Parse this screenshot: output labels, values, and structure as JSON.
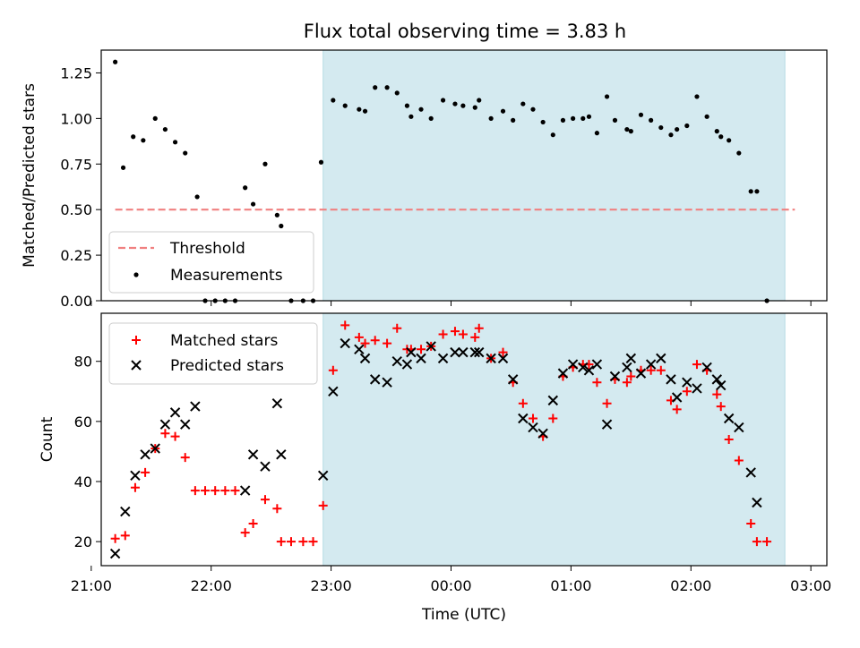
{
  "figure": {
    "title": "Flux total observing time = 3.83 h"
  },
  "highlight": {
    "x_start": "22:56",
    "x_end": "02:47",
    "color": "#d4eaf0"
  },
  "chart_data": [
    {
      "type": "scatter",
      "xlabel": "",
      "ylabel": "Matched/Predicted stars",
      "xlim": [
        "21:05",
        "03:08"
      ],
      "ylim": [
        0,
        1.375
      ],
      "yticks": [
        "0.00",
        "0.25",
        "0.50",
        "0.75",
        "1.00",
        "1.25"
      ],
      "legend": {
        "location": "lower left",
        "entries": [
          "Threshold",
          "Measurements"
        ]
      },
      "threshold": {
        "name": "Threshold",
        "value": 0.5,
        "x_range": [
          "21:12",
          "02:52"
        ],
        "color": "#f08080",
        "style": "dashed"
      },
      "series": [
        {
          "name": "Measurements",
          "color": "#000000",
          "points": [
            [
              "21:12",
              1.31
            ],
            [
              "21:16",
              0.73
            ],
            [
              "21:21",
              0.9
            ],
            [
              "21:26",
              0.88
            ],
            [
              "21:32",
              1.0
            ],
            [
              "21:37",
              0.94
            ],
            [
              "21:42",
              0.87
            ],
            [
              "21:47",
              0.81
            ],
            [
              "21:53",
              0.57
            ],
            [
              "21:57",
              0.0
            ],
            [
              "22:02",
              0.0
            ],
            [
              "22:07",
              0.0
            ],
            [
              "22:12",
              0.0
            ],
            [
              "22:17",
              0.62
            ],
            [
              "22:21",
              0.53
            ],
            [
              "22:27",
              0.75
            ],
            [
              "22:33",
              0.47
            ],
            [
              "22:35",
              0.41
            ],
            [
              "22:40",
              0.0
            ],
            [
              "22:46",
              0.0
            ],
            [
              "22:51",
              0.0
            ],
            [
              "22:55",
              0.76
            ],
            [
              "23:01",
              1.1
            ],
            [
              "23:07",
              1.07
            ],
            [
              "23:14",
              1.05
            ],
            [
              "23:17",
              1.04
            ],
            [
              "23:22",
              1.17
            ],
            [
              "23:28",
              1.17
            ],
            [
              "23:33",
              1.14
            ],
            [
              "23:38",
              1.07
            ],
            [
              "23:40",
              1.01
            ],
            [
              "23:45",
              1.05
            ],
            [
              "23:50",
              1.0
            ],
            [
              "23:56",
              1.1
            ],
            [
              "00:02",
              1.08
            ],
            [
              "00:06",
              1.07
            ],
            [
              "00:12",
              1.06
            ],
            [
              "00:14",
              1.1
            ],
            [
              "00:20",
              1.0
            ],
            [
              "00:26",
              1.04
            ],
            [
              "00:31",
              0.99
            ],
            [
              "00:36",
              1.08
            ],
            [
              "00:41",
              1.05
            ],
            [
              "00:46",
              0.98
            ],
            [
              "00:51",
              0.91
            ],
            [
              "00:56",
              0.99
            ],
            [
              "01:01",
              1.0
            ],
            [
              "01:06",
              1.0
            ],
            [
              "01:09",
              1.01
            ],
            [
              "01:13",
              0.92
            ],
            [
              "01:18",
              1.12
            ],
            [
              "01:22",
              0.99
            ],
            [
              "01:28",
              0.94
            ],
            [
              "01:30",
              0.93
            ],
            [
              "01:35",
              1.02
            ],
            [
              "01:40",
              0.99
            ],
            [
              "01:45",
              0.95
            ],
            [
              "01:50",
              0.91
            ],
            [
              "01:53",
              0.94
            ],
            [
              "01:58",
              0.96
            ],
            [
              "02:03",
              1.12
            ],
            [
              "02:08",
              1.01
            ],
            [
              "02:13",
              0.93
            ],
            [
              "02:15",
              0.9
            ],
            [
              "02:19",
              0.88
            ],
            [
              "02:24",
              0.81
            ],
            [
              "02:30",
              0.6
            ],
            [
              "02:33",
              0.6
            ],
            [
              "02:38",
              0.0
            ]
          ]
        }
      ]
    },
    {
      "type": "scatter",
      "xlabel": "Time (UTC)",
      "ylabel": "Count",
      "xlim": [
        "21:05",
        "03:08"
      ],
      "ylim": [
        12,
        96
      ],
      "yticks": [
        "20",
        "40",
        "60",
        "80"
      ],
      "xticks": [
        "21:00",
        "22:00",
        "23:00",
        "00:00",
        "01:00",
        "02:00",
        "03:00"
      ],
      "legend": {
        "location": "upper left",
        "entries": [
          "Matched stars",
          "Predicted stars"
        ]
      },
      "series": [
        {
          "name": "Matched stars",
          "marker": "plus",
          "color": "#ff0000",
          "points": [
            [
              "21:12",
              21
            ],
            [
              "21:17",
              22
            ],
            [
              "21:22",
              38
            ],
            [
              "21:27",
              43
            ],
            [
              "21:32",
              51
            ],
            [
              "21:37",
              56
            ],
            [
              "21:42",
              55
            ],
            [
              "21:47",
              48
            ],
            [
              "21:52",
              37
            ],
            [
              "21:57",
              37
            ],
            [
              "22:02",
              37
            ],
            [
              "22:07",
              37
            ],
            [
              "22:12",
              37
            ],
            [
              "22:17",
              23
            ],
            [
              "22:21",
              26
            ],
            [
              "22:27",
              34
            ],
            [
              "22:33",
              31
            ],
            [
              "22:35",
              20
            ],
            [
              "22:40",
              20
            ],
            [
              "22:46",
              20
            ],
            [
              "22:51",
              20
            ],
            [
              "22:56",
              32
            ],
            [
              "23:01",
              77
            ],
            [
              "23:07",
              92
            ],
            [
              "23:14",
              88
            ],
            [
              "23:17",
              86
            ],
            [
              "23:22",
              87
            ],
            [
              "23:28",
              86
            ],
            [
              "23:33",
              91
            ],
            [
              "23:38",
              84
            ],
            [
              "23:40",
              84
            ],
            [
              "23:45",
              84
            ],
            [
              "23:50",
              85
            ],
            [
              "23:56",
              89
            ],
            [
              "00:02",
              90
            ],
            [
              "00:06",
              89
            ],
            [
              "00:12",
              88
            ],
            [
              "00:14",
              91
            ],
            [
              "00:20",
              81
            ],
            [
              "00:26",
              83
            ],
            [
              "00:31",
              73
            ],
            [
              "00:36",
              66
            ],
            [
              "00:41",
              61
            ],
            [
              "00:46",
              55
            ],
            [
              "00:51",
              61
            ],
            [
              "00:56",
              75
            ],
            [
              "01:01",
              78
            ],
            [
              "01:06",
              79
            ],
            [
              "01:09",
              79
            ],
            [
              "01:13",
              73
            ],
            [
              "01:18",
              66
            ],
            [
              "01:22",
              74
            ],
            [
              "01:28",
              73
            ],
            [
              "01:30",
              75
            ],
            [
              "01:35",
              77
            ],
            [
              "01:40",
              77
            ],
            [
              "01:45",
              77
            ],
            [
              "01:50",
              67
            ],
            [
              "01:53",
              64
            ],
            [
              "01:58",
              70
            ],
            [
              "02:03",
              79
            ],
            [
              "02:08",
              77
            ],
            [
              "02:13",
              69
            ],
            [
              "02:15",
              65
            ],
            [
              "02:19",
              54
            ],
            [
              "02:24",
              47
            ],
            [
              "02:30",
              26
            ],
            [
              "02:33",
              20
            ],
            [
              "02:38",
              20
            ]
          ]
        },
        {
          "name": "Predicted stars",
          "marker": "x",
          "color": "#000000",
          "points": [
            [
              "21:12",
              16
            ],
            [
              "21:17",
              30
            ],
            [
              "21:22",
              42
            ],
            [
              "21:27",
              49
            ],
            [
              "21:32",
              51
            ],
            [
              "21:37",
              59
            ],
            [
              "21:42",
              63
            ],
            [
              "21:47",
              59
            ],
            [
              "21:52",
              65
            ],
            [
              "22:17",
              37
            ],
            [
              "22:21",
              49
            ],
            [
              "22:27",
              45
            ],
            [
              "22:33",
              66
            ],
            [
              "22:35",
              49
            ],
            [
              "22:56",
              42
            ],
            [
              "23:01",
              70
            ],
            [
              "23:07",
              86
            ],
            [
              "23:14",
              84
            ],
            [
              "23:17",
              81
            ],
            [
              "23:22",
              74
            ],
            [
              "23:28",
              73
            ],
            [
              "23:33",
              80
            ],
            [
              "23:38",
              79
            ],
            [
              "23:40",
              83
            ],
            [
              "23:45",
              81
            ],
            [
              "23:50",
              85
            ],
            [
              "23:56",
              81
            ],
            [
              "00:02",
              83
            ],
            [
              "00:06",
              83
            ],
            [
              "00:12",
              83
            ],
            [
              "00:14",
              83
            ],
            [
              "00:20",
              81
            ],
            [
              "00:26",
              81
            ],
            [
              "00:31",
              74
            ],
            [
              "00:36",
              61
            ],
            [
              "00:41",
              58
            ],
            [
              "00:46",
              56
            ],
            [
              "00:51",
              67
            ],
            [
              "00:56",
              76
            ],
            [
              "01:01",
              79
            ],
            [
              "01:06",
              78
            ],
            [
              "01:09",
              77
            ],
            [
              "01:13",
              79
            ],
            [
              "01:18",
              59
            ],
            [
              "01:22",
              75
            ],
            [
              "01:28",
              78
            ],
            [
              "01:30",
              81
            ],
            [
              "01:35",
              76
            ],
            [
              "01:40",
              79
            ],
            [
              "01:45",
              81
            ],
            [
              "01:50",
              74
            ],
            [
              "01:53",
              68
            ],
            [
              "01:58",
              73
            ],
            [
              "02:03",
              71
            ],
            [
              "02:08",
              78
            ],
            [
              "02:13",
              74
            ],
            [
              "02:15",
              72
            ],
            [
              "02:19",
              61
            ],
            [
              "02:24",
              58
            ],
            [
              "02:30",
              43
            ],
            [
              "02:33",
              33
            ]
          ]
        }
      ]
    }
  ]
}
